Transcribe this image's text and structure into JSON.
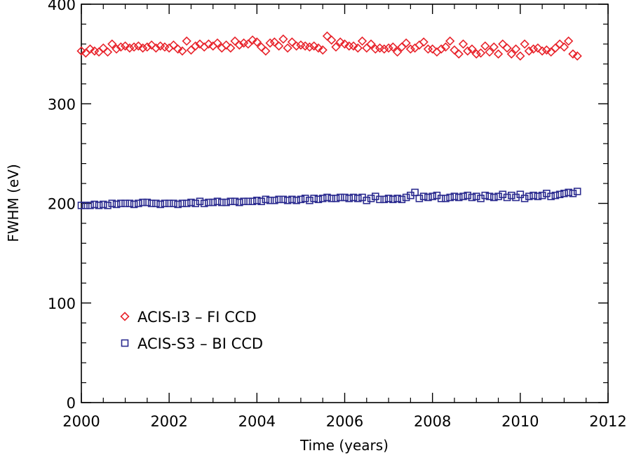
{
  "chart_data": {
    "type": "scatter",
    "title": "",
    "xlabel": "Time (years)",
    "ylabel": "FWHM (eV)",
    "xlim": [
      2000,
      2012
    ],
    "ylim": [
      0,
      400
    ],
    "xticks": [
      2000,
      2002,
      2004,
      2006,
      2008,
      2010,
      2012
    ],
    "yticks": [
      0,
      100,
      200,
      300,
      400
    ],
    "grid": false,
    "legend_position": "lower-left",
    "series": [
      {
        "name": "ACIS-I3 – FI CCD",
        "marker": "diamond",
        "color": "#e8232b",
        "x": [
          2000.0,
          2000.1,
          2000.2,
          2000.3,
          2000.4,
          2000.5,
          2000.6,
          2000.7,
          2000.8,
          2000.9,
          2001.0,
          2001.1,
          2001.2,
          2001.3,
          2001.4,
          2001.5,
          2001.6,
          2001.7,
          2001.8,
          2001.9,
          2002.0,
          2002.1,
          2002.2,
          2002.3,
          2002.4,
          2002.5,
          2002.6,
          2002.7,
          2002.8,
          2002.9,
          2003.0,
          2003.1,
          2003.2,
          2003.3,
          2003.4,
          2003.5,
          2003.6,
          2003.7,
          2003.8,
          2003.9,
          2004.0,
          2004.1,
          2004.2,
          2004.3,
          2004.4,
          2004.5,
          2004.6,
          2004.7,
          2004.8,
          2004.9,
          2005.0,
          2005.1,
          2005.2,
          2005.3,
          2005.4,
          2005.5,
          2005.6,
          2005.7,
          2005.8,
          2005.9,
          2006.0,
          2006.1,
          2006.2,
          2006.3,
          2006.4,
          2006.5,
          2006.6,
          2006.7,
          2006.8,
          2006.9,
          2007.0,
          2007.1,
          2007.2,
          2007.3,
          2007.4,
          2007.5,
          2007.6,
          2007.7,
          2007.8,
          2007.9,
          2008.0,
          2008.1,
          2008.2,
          2008.3,
          2008.4,
          2008.5,
          2008.6,
          2008.7,
          2008.8,
          2008.9,
          2009.0,
          2009.1,
          2009.2,
          2009.3,
          2009.4,
          2009.5,
          2009.6,
          2009.7,
          2009.8,
          2009.9,
          2010.0,
          2010.1,
          2010.2,
          2010.3,
          2010.4,
          2010.5,
          2010.6,
          2010.7,
          2010.8,
          2010.9,
          2011.0,
          2011.1,
          2011.2,
          2011.3
        ],
        "y": [
          353,
          351,
          355,
          353,
          352,
          356,
          352,
          360,
          355,
          357,
          358,
          356,
          357,
          358,
          356,
          357,
          359,
          356,
          358,
          357,
          356,
          359,
          355,
          353,
          363,
          354,
          358,
          360,
          357,
          360,
          358,
          361,
          356,
          359,
          356,
          363,
          359,
          361,
          360,
          364,
          362,
          357,
          353,
          361,
          362,
          358,
          365,
          356,
          362,
          358,
          359,
          358,
          357,
          358,
          356,
          354,
          368,
          364,
          357,
          362,
          360,
          358,
          358,
          356,
          363,
          356,
          360,
          355,
          356,
          355,
          356,
          357,
          352,
          357,
          361,
          355,
          356,
          359,
          362,
          355,
          355,
          352,
          355,
          357,
          363,
          354,
          350,
          360,
          353,
          355,
          350,
          351,
          358,
          352,
          357,
          350,
          360,
          356,
          350,
          355,
          348,
          360,
          353,
          355,
          356,
          353,
          354,
          352,
          356,
          360,
          357,
          363,
          350,
          348
        ]
      },
      {
        "name": "ACIS-S3 – BI CCD",
        "marker": "square",
        "color": "#2b2b8f",
        "x": [
          2000.0,
          2000.1,
          2000.2,
          2000.3,
          2000.4,
          2000.5,
          2000.6,
          2000.7,
          2000.8,
          2000.9,
          2001.0,
          2001.1,
          2001.2,
          2001.3,
          2001.4,
          2001.5,
          2001.6,
          2001.7,
          2001.8,
          2001.9,
          2002.0,
          2002.1,
          2002.2,
          2002.3,
          2002.4,
          2002.5,
          2002.6,
          2002.7,
          2002.8,
          2002.9,
          2003.0,
          2003.1,
          2003.2,
          2003.3,
          2003.4,
          2003.5,
          2003.6,
          2003.7,
          2003.8,
          2003.9,
          2004.0,
          2004.1,
          2004.2,
          2004.3,
          2004.4,
          2004.5,
          2004.6,
          2004.7,
          2004.8,
          2004.9,
          2005.0,
          2005.1,
          2005.2,
          2005.3,
          2005.4,
          2005.5,
          2005.6,
          2005.7,
          2005.8,
          2005.9,
          2006.0,
          2006.1,
          2006.2,
          2006.3,
          2006.4,
          2006.5,
          2006.6,
          2006.7,
          2006.8,
          2006.9,
          2007.0,
          2007.1,
          2007.2,
          2007.3,
          2007.4,
          2007.5,
          2007.6,
          2007.7,
          2007.8,
          2007.9,
          2008.0,
          2008.1,
          2008.2,
          2008.3,
          2008.4,
          2008.5,
          2008.6,
          2008.7,
          2008.8,
          2008.9,
          2009.0,
          2009.1,
          2009.2,
          2009.3,
          2009.4,
          2009.5,
          2009.6,
          2009.7,
          2009.8,
          2009.9,
          2010.0,
          2010.1,
          2010.2,
          2010.3,
          2010.4,
          2010.5,
          2010.6,
          2010.7,
          2010.8,
          2010.9,
          2011.0,
          2011.1,
          2011.2,
          2011.3
        ],
        "y": [
          198,
          198,
          198,
          199,
          198,
          199,
          198,
          200,
          199,
          200,
          200,
          200,
          199,
          200,
          201,
          201,
          200,
          200,
          199,
          200,
          200,
          200,
          199,
          200,
          200,
          201,
          200,
          202,
          200,
          201,
          201,
          202,
          201,
          201,
          202,
          202,
          201,
          202,
          202,
          202,
          203,
          202,
          204,
          203,
          203,
          204,
          204,
          203,
          204,
          203,
          204,
          205,
          203,
          205,
          204,
          205,
          206,
          205,
          205,
          206,
          206,
          205,
          206,
          205,
          206,
          203,
          205,
          207,
          204,
          204,
          205,
          204,
          205,
          204,
          206,
          208,
          211,
          205,
          207,
          206,
          207,
          208,
          205,
          205,
          206,
          207,
          206,
          207,
          208,
          206,
          207,
          205,
          208,
          207,
          206,
          207,
          209,
          206,
          208,
          206,
          209,
          205,
          207,
          208,
          207,
          208,
          210,
          207,
          208,
          209,
          210,
          211,
          210,
          212
        ]
      }
    ]
  }
}
